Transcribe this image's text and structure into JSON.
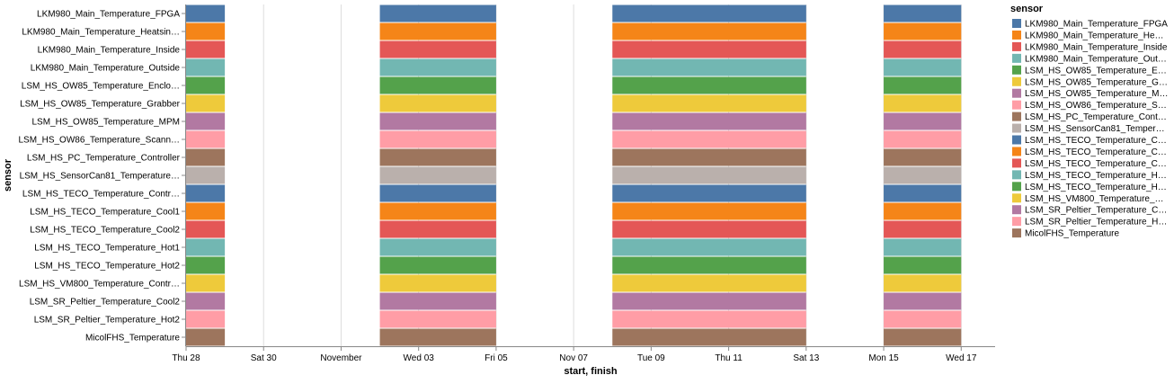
{
  "chart_data": {
    "type": "gantt",
    "x_axis_title": "start, finish",
    "y_axis_title": "sensor",
    "x_ticks": [
      "Thu 28",
      "Sat 30",
      "November",
      "Wed 03",
      "Fri 05",
      "Nov 07",
      "Tue 09",
      "Thu 11",
      "Sat 13",
      "Mon 15",
      "Wed 17"
    ],
    "x_domain": [
      "2021-10-28T00:00",
      "2021-11-17T21:00"
    ],
    "grid": true,
    "legend_position": "right",
    "legend_title": "sensor",
    "categories": [
      "LKM980_Main_Temperature_FPGA",
      "LKM980_Main_Temperature_Heatsin…",
      "LKM980_Main_Temperature_Inside",
      "LKM980_Main_Temperature_Outside",
      "LSM_HS_OW85_Temperature_Enclo…",
      "LSM_HS_OW85_Temperature_Grabber",
      "LSM_HS_OW85_Temperature_MPM",
      "LSM_HS_OW86_Temperature_Scann…",
      "LSM_HS_PC_Temperature_Controller",
      "LSM_HS_SensorCan81_Temperature…",
      "LSM_HS_TECO_Temperature_Contr…",
      "LSM_HS_TECO_Temperature_Cool1",
      "LSM_HS_TECO_Temperature_Cool2",
      "LSM_HS_TECO_Temperature_Hot1",
      "LSM_HS_TECO_Temperature_Hot2",
      "LSM_HS_VM800_Temperature_Contr…",
      "LSM_SR_Peltier_Temperature_Cool2",
      "LSM_SR_Peltier_Temperature_Hot2",
      "MicolFHS_Temperature"
    ],
    "legend_labels": [
      "LKM980_Main_Temperature_FPGA",
      "LKM980_Main_Temperature_He…",
      "LKM980_Main_Temperature_Inside",
      "LKM980_Main_Temperature_Out…",
      "LSM_HS_OW85_Temperature_E…",
      "LSM_HS_OW85_Temperature_G…",
      "LSM_HS_OW85_Temperature_M…",
      "LSM_HS_OW86_Temperature_S…",
      "LSM_HS_PC_Temperature_Cont…",
      "LSM_HS_SensorCan81_Temper…",
      "LSM_HS_TECO_Temperature_C…",
      "LSM_HS_TECO_Temperature_C…",
      "LSM_HS_TECO_Temperature_C…",
      "LSM_HS_TECO_Temperature_H…",
      "LSM_HS_TECO_Temperature_H…",
      "LSM_HS_VM800_Temperature_…",
      "LSM_SR_Peltier_Temperature_C…",
      "LSM_SR_Peltier_Temperature_H…",
      "MicolFHS_Temperature"
    ],
    "colors": [
      "#4c78a8",
      "#f58518",
      "#e45756",
      "#72b7b2",
      "#54a24b",
      "#eeca3b",
      "#b279a2",
      "#ff9da6",
      "#9d755d",
      "#bab0ac",
      "#4c78a8",
      "#f58518",
      "#e45756",
      "#72b7b2",
      "#54a24b",
      "#eeca3b",
      "#b279a2",
      "#ff9da6",
      "#9d755d"
    ],
    "intervals": [
      {
        "start": "2021-10-28T00:00",
        "finish": "2021-10-29T00:00"
      },
      {
        "start": "2021-11-02T00:00",
        "finish": "2021-11-05T00:00"
      },
      {
        "start": "2021-11-08T00:00",
        "finish": "2021-11-13T00:00"
      },
      {
        "start": "2021-11-15T00:00",
        "finish": "2021-11-17T00:00"
      }
    ],
    "intervals_apply_to": "all sensors"
  }
}
